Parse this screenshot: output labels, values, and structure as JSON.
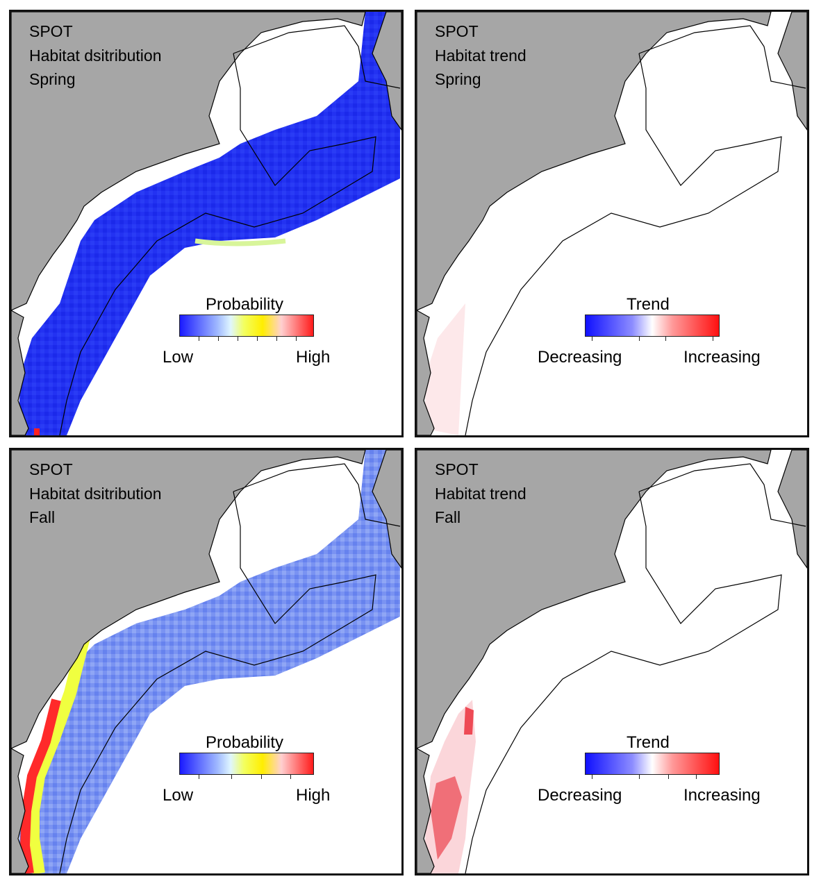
{
  "panels": [
    {
      "id": "spring-distribution",
      "species": "SPOT",
      "metric": "Habitat dsitribution",
      "season": "Spring",
      "legend": {
        "title": "Probability",
        "low": "Low",
        "high": "High",
        "palette": [
          "#1a1aff",
          "#ffffff",
          "#ffff00",
          "#ff2222"
        ]
      }
    },
    {
      "id": "spring-trend",
      "species": "SPOT",
      "metric": "Habitat trend",
      "season": "Spring",
      "legend": {
        "title": "Trend",
        "low": "Decreasing",
        "high": "Increasing",
        "palette": [
          "#1a1aff",
          "#ffffff",
          "#ff2222"
        ]
      }
    },
    {
      "id": "fall-distribution",
      "species": "SPOT",
      "metric": "Habitat dsitribution",
      "season": "Fall",
      "legend": {
        "title": "Probability",
        "low": "Low",
        "high": "High",
        "palette": [
          "#1a1aff",
          "#ffffff",
          "#ffff00",
          "#ff2222"
        ]
      }
    },
    {
      "id": "fall-trend",
      "species": "SPOT",
      "metric": "Habitat trend",
      "season": "Fall",
      "legend": {
        "title": "Trend",
        "low": "Decreasing",
        "high": "Increasing",
        "palette": [
          "#1a1aff",
          "#ffffff",
          "#ff2222"
        ]
      }
    }
  ],
  "colors": {
    "land": "#a6a6a6",
    "coast": "#000000",
    "spring_fill": "#1f2df0",
    "fall_fill": "#6f8cf0"
  }
}
